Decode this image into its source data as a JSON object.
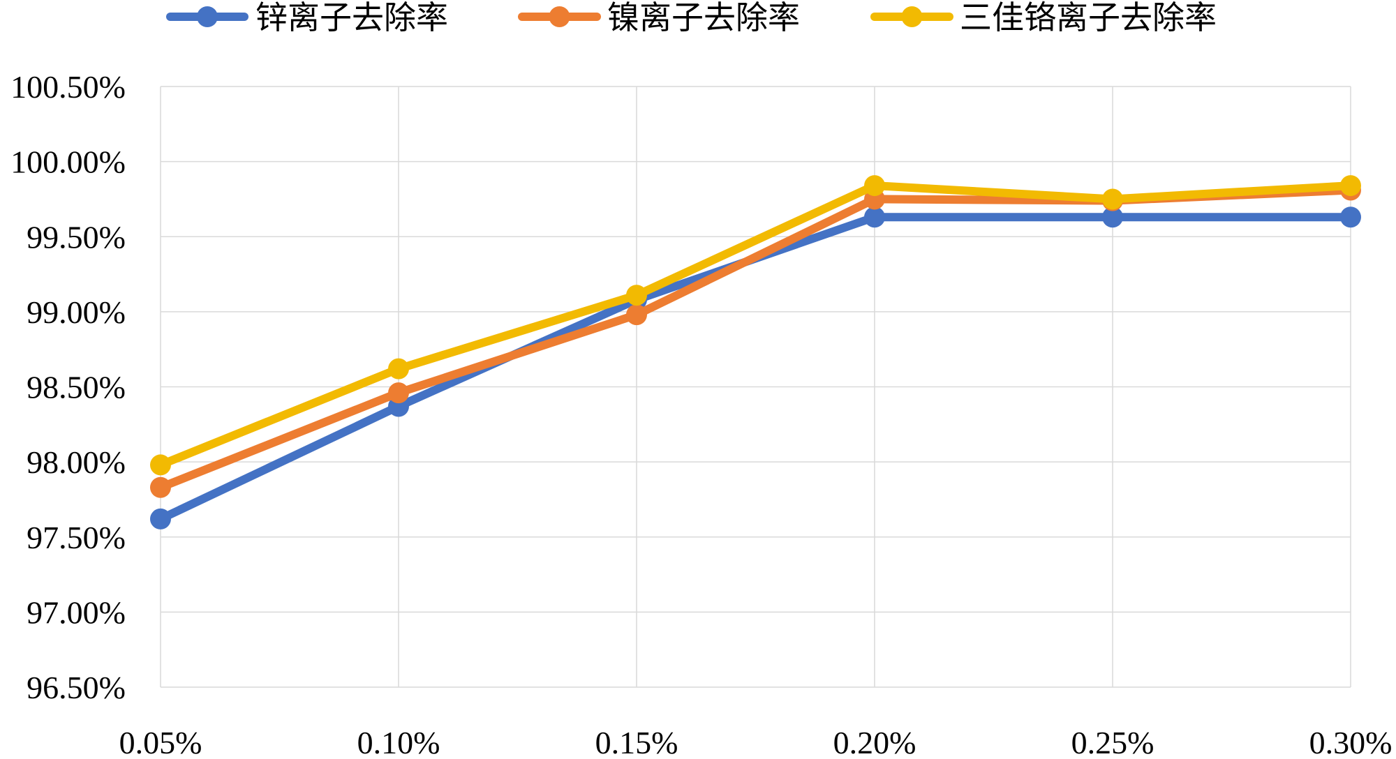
{
  "chart_data": {
    "type": "line",
    "categories": [
      "0.05%",
      "0.10%",
      "0.15%",
      "0.20%",
      "0.25%",
      "0.30%"
    ],
    "y_ticks": [
      "96.50%",
      "97.00%",
      "97.50%",
      "98.00%",
      "98.50%",
      "99.00%",
      "99.50%",
      "100.00%",
      "100.50%"
    ],
    "ylim": [
      96.5,
      100.5
    ],
    "grid": true,
    "legend_position": "top",
    "series": [
      {
        "name": "锌离子去除率",
        "color": "#4472C4",
        "values": [
          97.62,
          98.37,
          99.08,
          99.63,
          99.63,
          99.63
        ]
      },
      {
        "name": "镍离子去除率",
        "color": "#ED7D31",
        "values": [
          97.83,
          98.46,
          98.98,
          99.75,
          99.74,
          99.81
        ]
      },
      {
        "name": "三佳铬离子去除率",
        "color": "#F2BA02",
        "values": [
          97.98,
          98.62,
          99.11,
          99.84,
          99.75,
          99.84
        ]
      }
    ]
  }
}
